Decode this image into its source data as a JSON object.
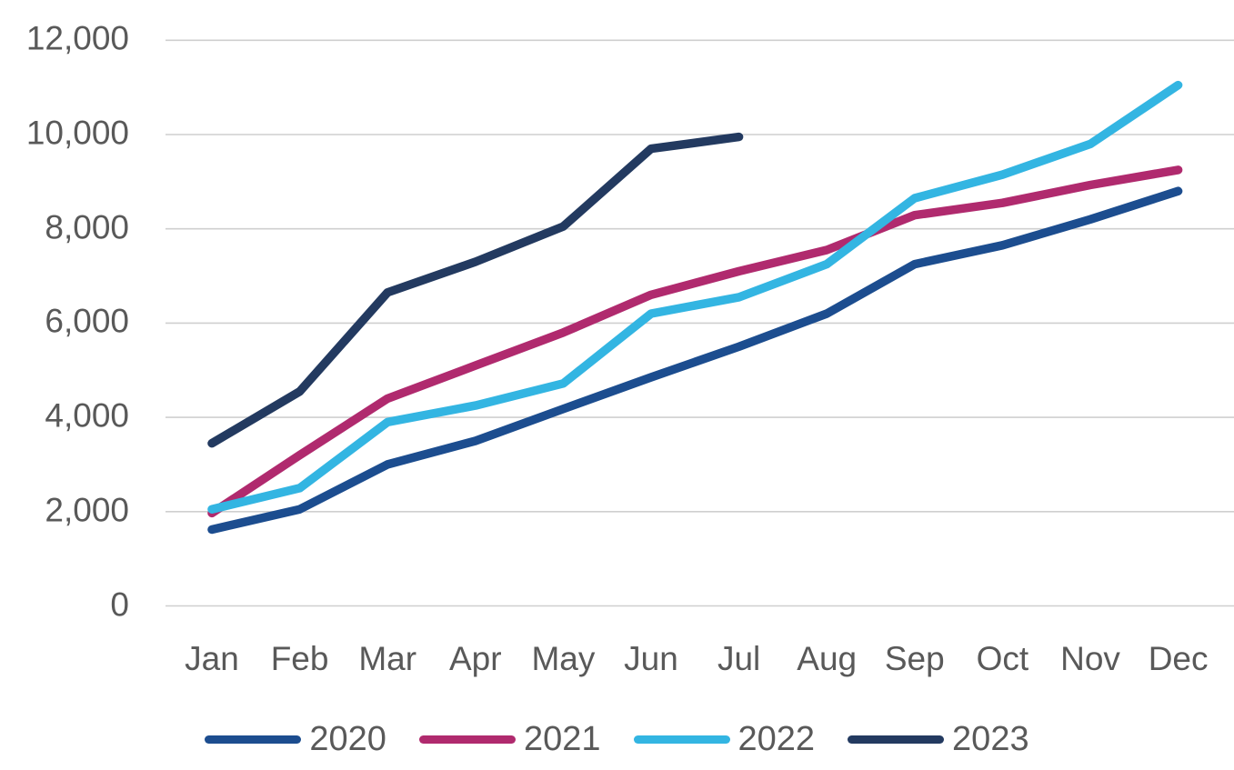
{
  "chart_data": {
    "type": "line",
    "title": "",
    "xlabel": "",
    "ylabel": "",
    "categories": [
      "Jan",
      "Feb",
      "Mar",
      "Apr",
      "May",
      "Jun",
      "Jul",
      "Aug",
      "Sep",
      "Oct",
      "Nov",
      "Dec"
    ],
    "y_ticks": [
      "0",
      "2,000",
      "4,000",
      "6,000",
      "8,000",
      "10,000",
      "12,000"
    ],
    "y_tick_values": [
      0,
      2000,
      4000,
      6000,
      8000,
      10000,
      12000
    ],
    "ylim": [
      0,
      12000
    ],
    "grid": "horizontal-only",
    "legend_position": "bottom",
    "series": [
      {
        "name": "2020",
        "color": "#1c4d8f",
        "values": [
          1620,
          2050,
          3000,
          3500,
          4180,
          4850,
          5500,
          6200,
          7250,
          7650,
          8200,
          8800
        ]
      },
      {
        "name": "2021",
        "color": "#b02a6e",
        "values": [
          1970,
          3200,
          4400,
          5100,
          5800,
          6600,
          7100,
          7550,
          8290,
          8550,
          8930,
          9250
        ]
      },
      {
        "name": "2022",
        "color": "#33b5e2",
        "values": [
          2050,
          2500,
          3900,
          4250,
          4720,
          6200,
          6550,
          7250,
          8650,
          9150,
          9800,
          11050
        ]
      },
      {
        "name": "2023",
        "color": "#233a60",
        "values": [
          3450,
          4550,
          6650,
          7300,
          8050,
          9700,
          9950,
          null,
          null,
          null,
          null,
          null
        ]
      }
    ]
  },
  "style": {
    "gridline_color": "#cfcfcf",
    "axis_text_color": "#595959",
    "background": "#ffffff"
  }
}
